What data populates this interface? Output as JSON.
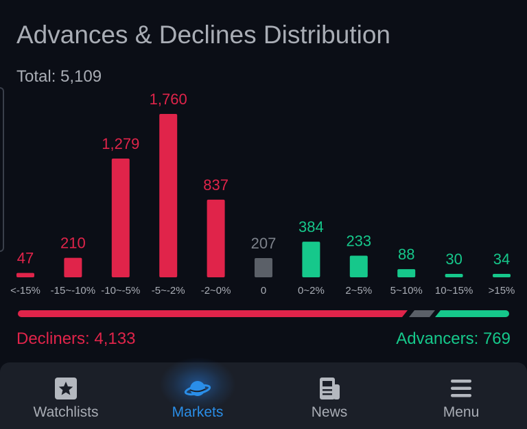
{
  "title": "Advances & Declines Distribution",
  "total_label": "Total: 5,109",
  "colors": {
    "decline": "#e0244a",
    "advance": "#16c88b",
    "neutral": "#5b6068",
    "neutral_text": "#7d828b"
  },
  "chart_data": {
    "type": "bar",
    "title": "Advances & Declines Distribution",
    "total": 5109,
    "categories": [
      "<-15%",
      "-15~-10%",
      "-10~-5%",
      "-5~-2%",
      "-2~0%",
      "0",
      "0~2%",
      "2~5%",
      "5~10%",
      "10~15%",
      ">15%"
    ],
    "values": [
      47,
      210,
      1279,
      1760,
      837,
      207,
      384,
      233,
      88,
      30,
      34
    ],
    "value_labels": [
      "47",
      "210",
      "1,279",
      "1,760",
      "837",
      "207",
      "384",
      "233",
      "88",
      "30",
      "34"
    ],
    "kinds": [
      "decline",
      "decline",
      "decline",
      "decline",
      "decline",
      "neutral",
      "advance",
      "advance",
      "advance",
      "advance",
      "advance"
    ],
    "ylim": [
      0,
      1760
    ]
  },
  "summary": {
    "decliners_label": "Decliners: 4,133",
    "advancers_label": "Advancers: 769",
    "decliners": 4133,
    "neutral": 207,
    "advancers": 769
  },
  "nav": [
    {
      "label": "Watchlists",
      "icon": "star-icon",
      "active": false
    },
    {
      "label": "Markets",
      "icon": "planet-icon",
      "active": true
    },
    {
      "label": "News",
      "icon": "newspaper-icon",
      "active": false
    },
    {
      "label": "Menu",
      "icon": "hamburger-icon",
      "active": false
    }
  ]
}
